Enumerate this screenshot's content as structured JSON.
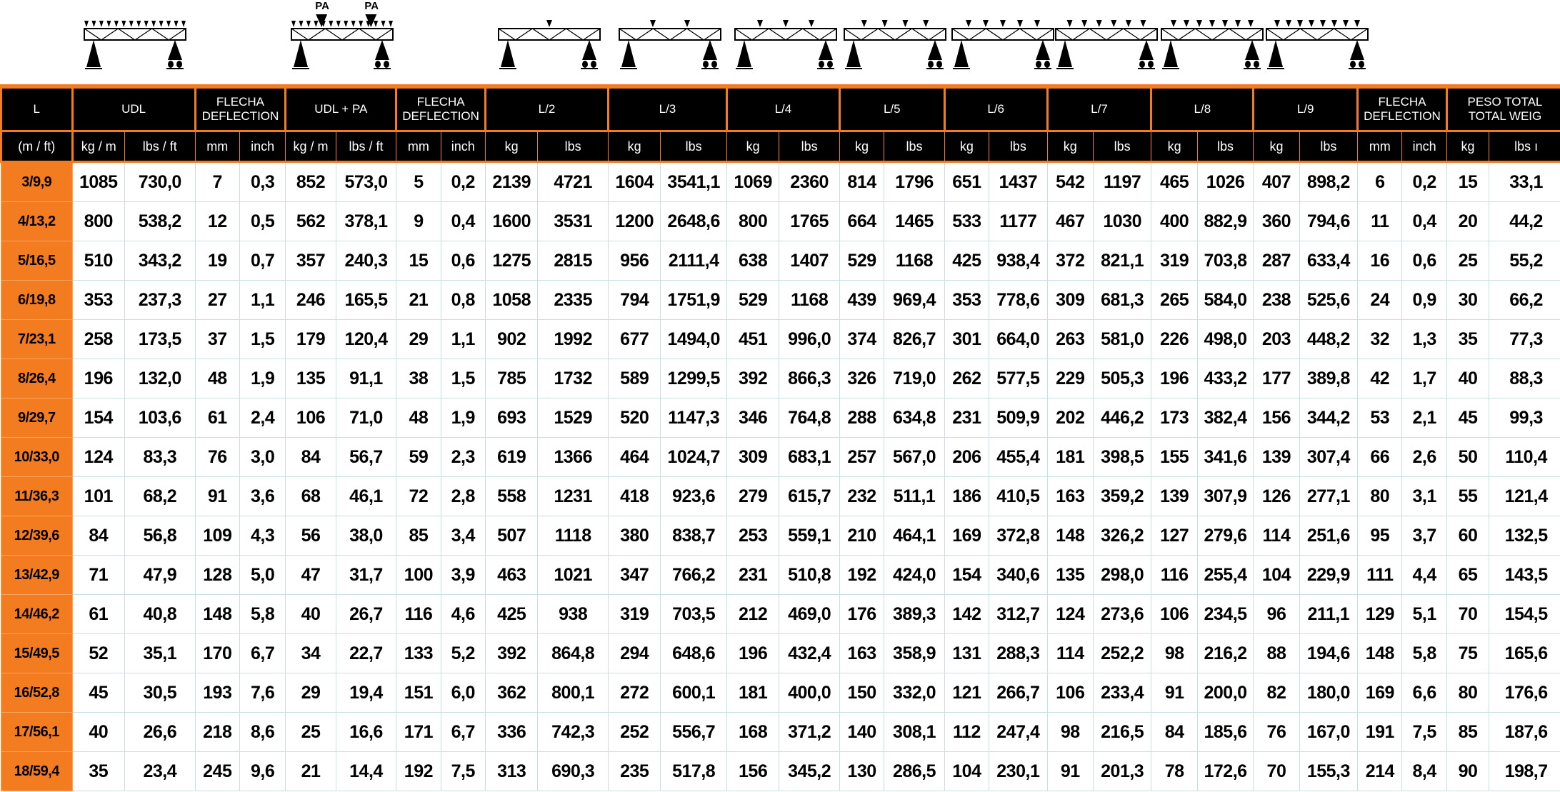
{
  "diagrams": [
    {
      "label": "UDL",
      "type": "udl",
      "loads": 0
    },
    {
      "label": "UDL + PA",
      "type": "udl_pa",
      "loads": 2,
      "point_label": "PA"
    },
    {
      "label": "L/2",
      "type": "point",
      "loads": 1
    },
    {
      "label": "L/3",
      "type": "point",
      "loads": 2
    },
    {
      "label": "L/4",
      "type": "point",
      "loads": 3
    },
    {
      "label": "L/5",
      "type": "point",
      "loads": 4
    },
    {
      "label": "L/6",
      "type": "point",
      "loads": 5
    },
    {
      "label": "L/7",
      "type": "point",
      "loads": 6
    },
    {
      "label": "L/8",
      "type": "point",
      "loads": 7
    },
    {
      "label": "L/9",
      "type": "point",
      "loads": 8
    }
  ],
  "colors": {
    "accent": "#f47c20",
    "header_bg": "#000000",
    "grid": "#c9dfe2"
  },
  "header": {
    "groups": [
      {
        "label": "L",
        "span": 1
      },
      {
        "label": "UDL",
        "span": 2
      },
      {
        "label": "FLECHA DEFLECTION",
        "span": 2
      },
      {
        "label": "UDL + PA",
        "span": 2
      },
      {
        "label": "FLECHA DEFLECTION",
        "span": 2
      },
      {
        "label": "L/2",
        "span": 2
      },
      {
        "label": "L/3",
        "span": 2
      },
      {
        "label": "L/4",
        "span": 2
      },
      {
        "label": "L/5",
        "span": 2
      },
      {
        "label": "L/6",
        "span": 2
      },
      {
        "label": "L/7",
        "span": 2
      },
      {
        "label": "L/8",
        "span": 2
      },
      {
        "label": "L/9",
        "span": 2
      },
      {
        "label": "FLECHA DEFLECTION",
        "span": 2
      },
      {
        "label": "PESO TOTAL TOTAL WEIG",
        "span": 2
      }
    ],
    "units": [
      "(m / ft)",
      "kg / m",
      "lbs / ft",
      "mm",
      "inch",
      "kg / m",
      "lbs / ft",
      "mm",
      "inch",
      "kg",
      "lbs",
      "kg",
      "lbs",
      "kg",
      "lbs",
      "kg",
      "lbs",
      "kg",
      "lbs",
      "kg",
      "lbs",
      "kg",
      "lbs",
      "kg",
      "lbs",
      "mm",
      "inch",
      "kg",
      "lbs ı"
    ]
  },
  "rows": [
    [
      "3/9,9",
      "1085",
      "730,0",
      "7",
      "0,3",
      "852",
      "573,0",
      "5",
      "0,2",
      "2139",
      "4721",
      "1604",
      "3541,1",
      "1069",
      "2360",
      "814",
      "1796",
      "651",
      "1437",
      "542",
      "1197",
      "465",
      "1026",
      "407",
      "898,2",
      "6",
      "0,2",
      "15",
      "33,1"
    ],
    [
      "4/13,2",
      "800",
      "538,2",
      "12",
      "0,5",
      "562",
      "378,1",
      "9",
      "0,4",
      "1600",
      "3531",
      "1200",
      "2648,6",
      "800",
      "1765",
      "664",
      "1465",
      "533",
      "1177",
      "467",
      "1030",
      "400",
      "882,9",
      "360",
      "794,6",
      "11",
      "0,4",
      "20",
      "44,2"
    ],
    [
      "5/16,5",
      "510",
      "343,2",
      "19",
      "0,7",
      "357",
      "240,3",
      "15",
      "0,6",
      "1275",
      "2815",
      "956",
      "2111,4",
      "638",
      "1407",
      "529",
      "1168",
      "425",
      "938,4",
      "372",
      "821,1",
      "319",
      "703,8",
      "287",
      "633,4",
      "16",
      "0,6",
      "25",
      "55,2"
    ],
    [
      "6/19,8",
      "353",
      "237,3",
      "27",
      "1,1",
      "246",
      "165,5",
      "21",
      "0,8",
      "1058",
      "2335",
      "794",
      "1751,9",
      "529",
      "1168",
      "439",
      "969,4",
      "353",
      "778,6",
      "309",
      "681,3",
      "265",
      "584,0",
      "238",
      "525,6",
      "24",
      "0,9",
      "30",
      "66,2"
    ],
    [
      "7/23,1",
      "258",
      "173,5",
      "37",
      "1,5",
      "179",
      "120,4",
      "29",
      "1,1",
      "902",
      "1992",
      "677",
      "1494,0",
      "451",
      "996,0",
      "374",
      "826,7",
      "301",
      "664,0",
      "263",
      "581,0",
      "226",
      "498,0",
      "203",
      "448,2",
      "32",
      "1,3",
      "35",
      "77,3"
    ],
    [
      "8/26,4",
      "196",
      "132,0",
      "48",
      "1,9",
      "135",
      "91,1",
      "38",
      "1,5",
      "785",
      "1732",
      "589",
      "1299,5",
      "392",
      "866,3",
      "326",
      "719,0",
      "262",
      "577,5",
      "229",
      "505,3",
      "196",
      "433,2",
      "177",
      "389,8",
      "42",
      "1,7",
      "40",
      "88,3"
    ],
    [
      "9/29,7",
      "154",
      "103,6",
      "61",
      "2,4",
      "106",
      "71,0",
      "48",
      "1,9",
      "693",
      "1529",
      "520",
      "1147,3",
      "346",
      "764,8",
      "288",
      "634,8",
      "231",
      "509,9",
      "202",
      "446,2",
      "173",
      "382,4",
      "156",
      "344,2",
      "53",
      "2,1",
      "45",
      "99,3"
    ],
    [
      "10/33,0",
      "124",
      "83,3",
      "76",
      "3,0",
      "84",
      "56,7",
      "59",
      "2,3",
      "619",
      "1366",
      "464",
      "1024,7",
      "309",
      "683,1",
      "257",
      "567,0",
      "206",
      "455,4",
      "181",
      "398,5",
      "155",
      "341,6",
      "139",
      "307,4",
      "66",
      "2,6",
      "50",
      "110,4"
    ],
    [
      "11/36,3",
      "101",
      "68,2",
      "91",
      "3,6",
      "68",
      "46,1",
      "72",
      "2,8",
      "558",
      "1231",
      "418",
      "923,6",
      "279",
      "615,7",
      "232",
      "511,1",
      "186",
      "410,5",
      "163",
      "359,2",
      "139",
      "307,9",
      "126",
      "277,1",
      "80",
      "3,1",
      "55",
      "121,4"
    ],
    [
      "12/39,6",
      "84",
      "56,8",
      "109",
      "4,3",
      "56",
      "38,0",
      "85",
      "3,4",
      "507",
      "1118",
      "380",
      "838,7",
      "253",
      "559,1",
      "210",
      "464,1",
      "169",
      "372,8",
      "148",
      "326,2",
      "127",
      "279,6",
      "114",
      "251,6",
      "95",
      "3,7",
      "60",
      "132,5"
    ],
    [
      "13/42,9",
      "71",
      "47,9",
      "128",
      "5,0",
      "47",
      "31,7",
      "100",
      "3,9",
      "463",
      "1021",
      "347",
      "766,2",
      "231",
      "510,8",
      "192",
      "424,0",
      "154",
      "340,6",
      "135",
      "298,0",
      "116",
      "255,4",
      "104",
      "229,9",
      "111",
      "4,4",
      "65",
      "143,5"
    ],
    [
      "14/46,2",
      "61",
      "40,8",
      "148",
      "5,8",
      "40",
      "26,7",
      "116",
      "4,6",
      "425",
      "938",
      "319",
      "703,5",
      "212",
      "469,0",
      "176",
      "389,3",
      "142",
      "312,7",
      "124",
      "273,6",
      "106",
      "234,5",
      "96",
      "211,1",
      "129",
      "5,1",
      "70",
      "154,5"
    ],
    [
      "15/49,5",
      "52",
      "35,1",
      "170",
      "6,7",
      "34",
      "22,7",
      "133",
      "5,2",
      "392",
      "864,8",
      "294",
      "648,6",
      "196",
      "432,4",
      "163",
      "358,9",
      "131",
      "288,3",
      "114",
      "252,2",
      "98",
      "216,2",
      "88",
      "194,6",
      "148",
      "5,8",
      "75",
      "165,6"
    ],
    [
      "16/52,8",
      "45",
      "30,5",
      "193",
      "7,6",
      "29",
      "19,4",
      "151",
      "6,0",
      "362",
      "800,1",
      "272",
      "600,1",
      "181",
      "400,0",
      "150",
      "332,0",
      "121",
      "266,7",
      "106",
      "233,4",
      "91",
      "200,0",
      "82",
      "180,0",
      "169",
      "6,6",
      "80",
      "176,6"
    ],
    [
      "17/56,1",
      "40",
      "26,6",
      "218",
      "8,6",
      "25",
      "16,6",
      "171",
      "6,7",
      "336",
      "742,3",
      "252",
      "556,7",
      "168",
      "371,2",
      "140",
      "308,1",
      "112",
      "247,4",
      "98",
      "216,5",
      "84",
      "185,6",
      "76",
      "167,0",
      "191",
      "7,5",
      "85",
      "187,6"
    ],
    [
      "18/59,4",
      "35",
      "23,4",
      "245",
      "9,6",
      "21",
      "14,4",
      "192",
      "7,5",
      "313",
      "690,3",
      "235",
      "517,8",
      "156",
      "345,2",
      "130",
      "286,5",
      "104",
      "230,1",
      "91",
      "201,3",
      "78",
      "172,6",
      "70",
      "155,3",
      "214",
      "8,4",
      "90",
      "198,7"
    ]
  ]
}
